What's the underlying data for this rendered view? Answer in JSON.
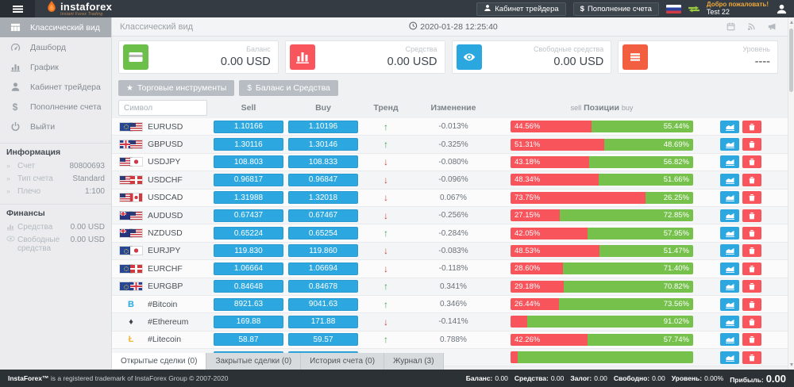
{
  "topbar": {
    "brand_name": "instaforex",
    "brand_tagline": "Instant Forex Trading",
    "cabinet_button": "Кабинет трейдера",
    "deposit_symbol": "$",
    "deposit_button": "Пополнение счета",
    "welcome": "Добро пожаловать!",
    "username": "Test 22"
  },
  "sidebar": {
    "menu": [
      {
        "label": "Классический вид",
        "icon": "grid",
        "active": true
      },
      {
        "label": "Дашборд",
        "icon": "dashboard",
        "active": false
      },
      {
        "label": "График",
        "icon": "chart",
        "active": false
      },
      {
        "label": "Кабинет трейдера",
        "icon": "user",
        "active": false
      },
      {
        "label": "Пополнение счета",
        "icon": "dollar",
        "active": false
      },
      {
        "label": "Выйти",
        "icon": "power",
        "active": false
      }
    ],
    "info_title": "Информация",
    "info_rows": [
      {
        "label": "Счет",
        "value": "80800693"
      },
      {
        "label": "Тип счета",
        "value": "Standard"
      },
      {
        "label": "Плечо",
        "value": "1:100"
      }
    ],
    "finance_title": "Финансы",
    "finance_rows": [
      {
        "label": "Средства",
        "value": "0.00 USD",
        "icon": "chart-mini"
      },
      {
        "label": "Свободные средства",
        "value": "0.00 USD",
        "icon": "eye-mini"
      }
    ]
  },
  "content": {
    "title": "Классический вид",
    "datetime": "2020-01-28 12:25:40",
    "cards": [
      {
        "label": "Баланс",
        "value": "0.00 USD",
        "color": "#6cc04a",
        "icon": "creditCard",
        "icon_name": "credit-card-icon"
      },
      {
        "label": "Средства",
        "value": "0.00 USD",
        "color": "#f8555d",
        "icon": "barChart",
        "icon_name": "bar-chart-icon"
      },
      {
        "label": "Свободные средства",
        "value": "0.00 USD",
        "color": "#2ba7e0",
        "icon": "eye",
        "icon_name": "eye-icon"
      },
      {
        "label": "Уровень",
        "value": "----",
        "color": "#f15f40",
        "icon": "menuBars",
        "icon_name": "menu-lines-icon"
      }
    ],
    "toolbar": {
      "star": "★",
      "instruments": "Торговые инструменты",
      "dollar": "$",
      "balance": "Баланс и Средства"
    }
  },
  "table": {
    "symbol_placeholder": "Символ",
    "headers": {
      "sell": "Sell",
      "buy": "Buy",
      "trend": "Тренд",
      "change": "Изменение",
      "pos_sell": "sell",
      "pos_center": "Позиции",
      "pos_buy": "buy"
    },
    "rows": [
      {
        "symbol": "EURUSD",
        "icon": {
          "type": "flags",
          "flags": [
            "eu",
            "us"
          ]
        },
        "sell": "1.10166",
        "buy": "1.10196",
        "trend": "up",
        "change": "-0.013%",
        "sell_pct": 44.56,
        "buy_pct": 55.44,
        "sell_label": "44.56%",
        "buy_label": "55.44%"
      },
      {
        "symbol": "GBPUSD",
        "icon": {
          "type": "flags",
          "flags": [
            "gb",
            "us"
          ]
        },
        "sell": "1.30116",
        "buy": "1.30146",
        "trend": "up",
        "change": "-0.325%",
        "sell_pct": 51.31,
        "buy_pct": 48.69,
        "sell_label": "51.31%",
        "buy_label": "48.69%"
      },
      {
        "symbol": "USDJPY",
        "icon": {
          "type": "flags",
          "flags": [
            "us",
            "jp"
          ]
        },
        "sell": "108.803",
        "buy": "108.833",
        "trend": "down",
        "change": "-0.080%",
        "sell_pct": 43.18,
        "buy_pct": 56.82,
        "sell_label": "43.18%",
        "buy_label": "56.82%"
      },
      {
        "symbol": "USDCHF",
        "icon": {
          "type": "flags",
          "flags": [
            "us",
            "ch"
          ]
        },
        "sell": "0.96817",
        "buy": "0.96847",
        "trend": "down",
        "change": "-0.096%",
        "sell_pct": 48.34,
        "buy_pct": 51.66,
        "sell_label": "48.34%",
        "buy_label": "51.66%"
      },
      {
        "symbol": "USDCAD",
        "icon": {
          "type": "flags",
          "flags": [
            "us",
            "ca"
          ]
        },
        "sell": "1.31988",
        "buy": "1.32018",
        "trend": "down",
        "change": "0.067%",
        "sell_pct": 73.75,
        "buy_pct": 26.25,
        "sell_label": "73.75%",
        "buy_label": "26.25%"
      },
      {
        "symbol": "AUDUSD",
        "icon": {
          "type": "flags",
          "flags": [
            "au",
            "us"
          ]
        },
        "sell": "0.67437",
        "buy": "0.67467",
        "trend": "down",
        "change": "-0.256%",
        "sell_pct": 27.15,
        "buy_pct": 72.85,
        "sell_label": "27.15%",
        "buy_label": "72.85%"
      },
      {
        "symbol": "NZDUSD",
        "icon": {
          "type": "flags",
          "flags": [
            "nz",
            "us"
          ]
        },
        "sell": "0.65224",
        "buy": "0.65254",
        "trend": "up",
        "change": "-0.284%",
        "sell_pct": 42.05,
        "buy_pct": 57.95,
        "sell_label": "42.05%",
        "buy_label": "57.95%"
      },
      {
        "symbol": "EURJPY",
        "icon": {
          "type": "flags",
          "flags": [
            "eu",
            "jp"
          ]
        },
        "sell": "119.830",
        "buy": "119.860",
        "trend": "down",
        "change": "-0.083%",
        "sell_pct": 48.53,
        "buy_pct": 51.47,
        "sell_label": "48.53%",
        "buy_label": "51.47%"
      },
      {
        "symbol": "EURCHF",
        "icon": {
          "type": "flags",
          "flags": [
            "eu",
            "ch"
          ]
        },
        "sell": "1.06664",
        "buy": "1.06694",
        "trend": "down",
        "change": "-0.118%",
        "sell_pct": 28.6,
        "buy_pct": 71.4,
        "sell_label": "28.60%",
        "buy_label": "71.40%"
      },
      {
        "symbol": "EURGBP",
        "icon": {
          "type": "flags",
          "flags": [
            "eu",
            "gb"
          ]
        },
        "sell": "0.84648",
        "buy": "0.84678",
        "trend": "up",
        "change": "0.341%",
        "sell_pct": 29.18,
        "buy_pct": 70.82,
        "sell_label": "29.18%",
        "buy_label": "70.82%"
      },
      {
        "symbol": "#Bitcoin",
        "icon": {
          "type": "crypto",
          "glyph": "B",
          "color": "#2ba7e0",
          "name": "bitcoin-icon"
        },
        "sell": "8921.63",
        "buy": "9041.63",
        "trend": "up",
        "change": "0.346%",
        "sell_pct": 26.44,
        "buy_pct": 73.56,
        "sell_label": "26.44%",
        "buy_label": "73.56%"
      },
      {
        "symbol": "#Ethereum",
        "icon": {
          "type": "crypto",
          "glyph": "♦",
          "color": "#3f464d",
          "name": "ethereum-icon"
        },
        "sell": "169.88",
        "buy": "171.88",
        "trend": "down",
        "change": "-0.141%",
        "sell_pct": 8.98,
        "buy_pct": 91.02,
        "sell_label": "",
        "buy_label": "91.02%"
      },
      {
        "symbol": "#Litecoin",
        "icon": {
          "type": "crypto",
          "glyph": "Ł",
          "color": "#f0b93b",
          "name": "litecoin-icon"
        },
        "sell": "58.87",
        "buy": "59.57",
        "trend": "up",
        "change": "0.788%",
        "sell_pct": 42.26,
        "buy_pct": 57.74,
        "sell_label": "42.26%",
        "buy_label": "57.74%"
      },
      {
        "symbol": "",
        "icon": {
          "type": "crypto",
          "glyph": "•",
          "color": "#2ba7e0",
          "name": "crypto-icon"
        },
        "sell": "",
        "buy": "",
        "trend": "",
        "change": "",
        "sell_pct": 4,
        "buy_pct": 96,
        "sell_label": "",
        "buy_label": ""
      }
    ]
  },
  "tabs": [
    {
      "label": "Открытые сделки (0)",
      "active": true
    },
    {
      "label": "Закрытые сделки (0)",
      "active": false
    },
    {
      "label": "История счета (0)",
      "active": false
    },
    {
      "label": "Журнал (3)",
      "active": false
    }
  ],
  "footer": {
    "copyright_brand": "InstaForex™",
    "copyright_rest": " is a registered trademark of InstaForex Group © 2007-2020",
    "summary": [
      {
        "label": "Баланс:",
        "value": "0.00",
        "large": false
      },
      {
        "label": "Средства:",
        "value": "0.00",
        "large": false
      },
      {
        "label": "Залог:",
        "value": "0.00",
        "large": false
      },
      {
        "label": "Свободно:",
        "value": "0.00",
        "large": false
      },
      {
        "label": "Уровень:",
        "value": "0.00%",
        "large": false
      },
      {
        "label": "Прибыль:",
        "value": "0.00",
        "large": true
      }
    ]
  }
}
